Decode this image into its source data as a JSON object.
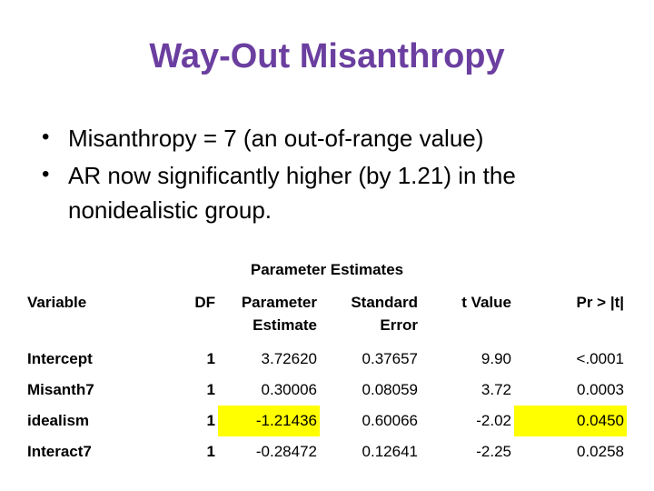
{
  "slide": {
    "title": "Way-Out Misanthropy",
    "title_color": "#6B3FA0",
    "bullets": [
      "Misanthropy = 7 (an out-of-range value)",
      "AR now significantly higher (by 1.21) in the nonidealistic group."
    ]
  },
  "table": {
    "title": "Parameter Estimates",
    "highlight_color": "#FFFF00",
    "columns": [
      "Variable",
      "DF",
      "Parameter Estimate",
      "Standard Error",
      "t Value",
      "Pr > |t|"
    ],
    "rows": [
      {
        "variable": "Intercept",
        "df": "1",
        "estimate": "3.72620",
        "std_error": "0.37657",
        "t_value": "9.90",
        "pr_t": "<.0001",
        "highlight": []
      },
      {
        "variable": "Misanth7",
        "df": "1",
        "estimate": "0.30006",
        "std_error": "0.08059",
        "t_value": "3.72",
        "pr_t": "0.0003",
        "highlight": []
      },
      {
        "variable": "idealism",
        "df": "1",
        "estimate": "-1.21436",
        "std_error": "0.60066",
        "t_value": "-2.02",
        "pr_t": "0.0450",
        "highlight": [
          "estimate",
          "pr_t"
        ]
      },
      {
        "variable": "Interact7",
        "df": "1",
        "estimate": "-0.28472",
        "std_error": "0.12641",
        "t_value": "-2.25",
        "pr_t": "0.0258",
        "highlight": []
      }
    ]
  }
}
